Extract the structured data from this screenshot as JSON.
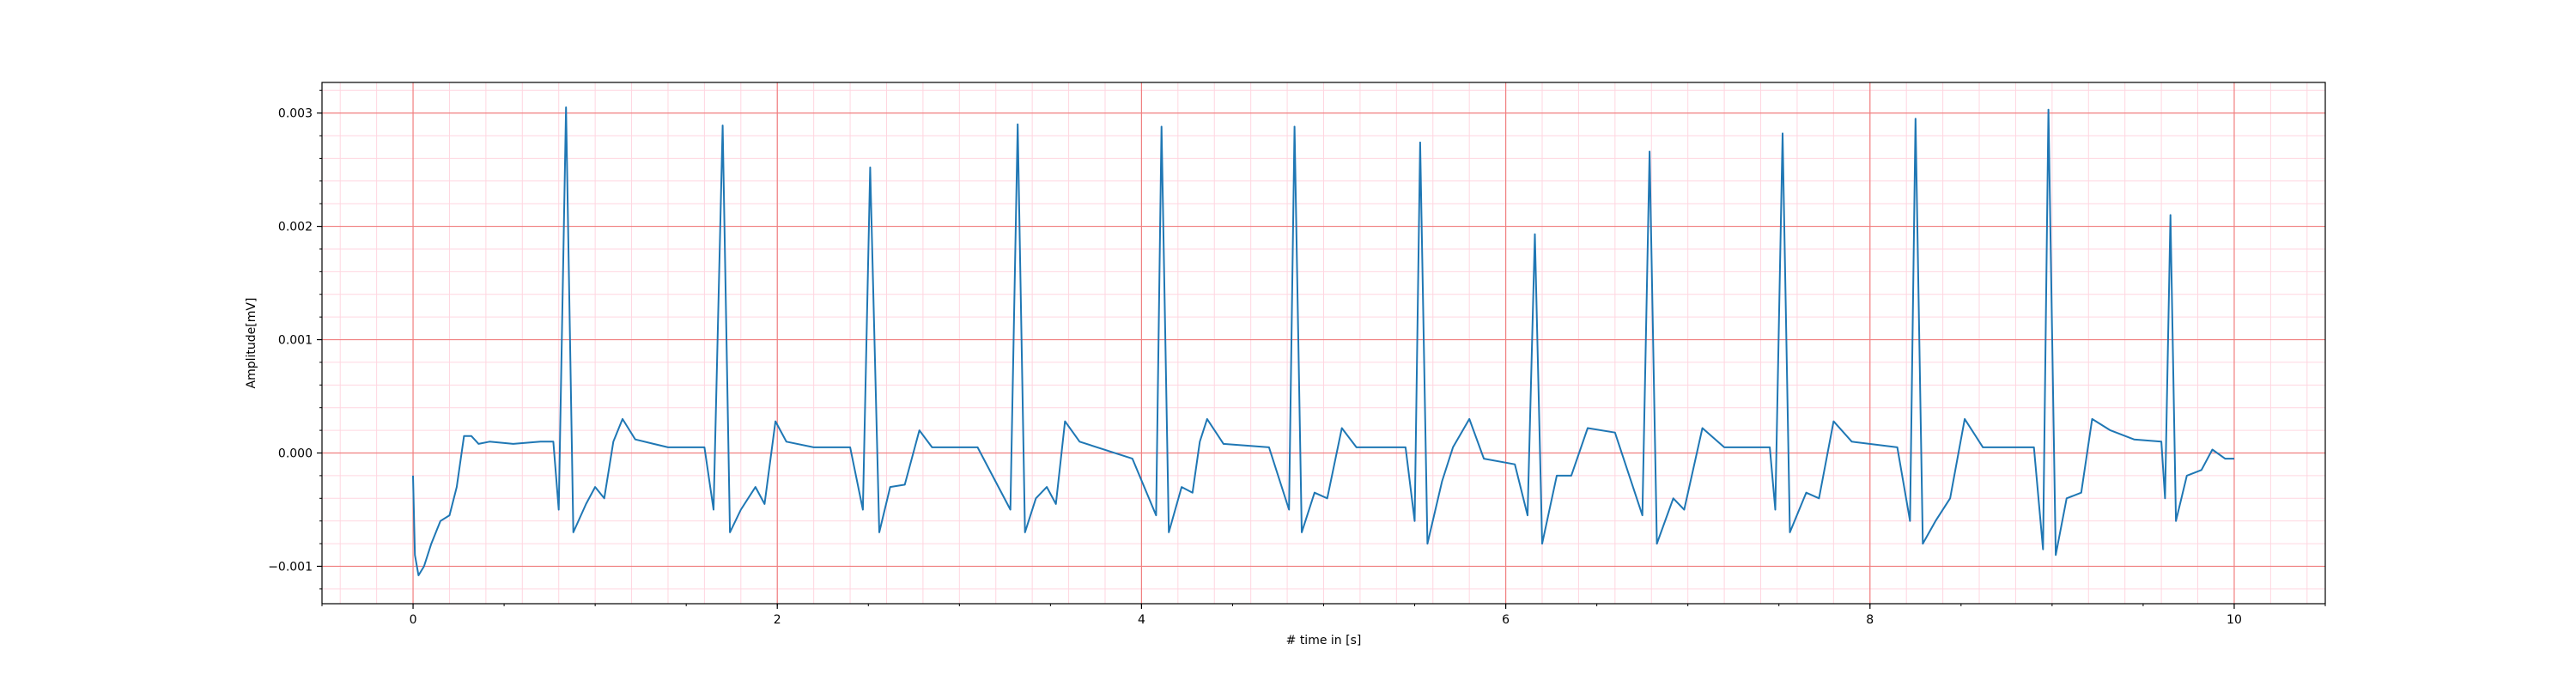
{
  "chart_data": {
    "type": "line",
    "title": "",
    "xlabel": "# time in [s]",
    "ylabel": "Amplitude[mV]",
    "xlim": [
      -0.5,
      10.5
    ],
    "ylim": [
      -0.00133,
      0.00327
    ],
    "x_ticks": [
      0,
      2,
      4,
      6,
      8,
      10
    ],
    "x_tick_labels": [
      "0",
      "2",
      "4",
      "6",
      "8",
      "10"
    ],
    "y_ticks": [
      -0.001,
      0.0,
      0.001,
      0.002,
      0.003
    ],
    "y_tick_labels": [
      "−0.001",
      "0.000",
      "0.001",
      "0.002",
      "0.003"
    ],
    "grid": {
      "major": true,
      "minor": true
    },
    "colors": {
      "line": "#1f77b4",
      "major_grid": "#f08080",
      "minor_grid": "#ffd6e0",
      "axes": "#000000"
    },
    "series": [
      {
        "r_peaks_t": [
          0.84,
          1.7,
          2.51,
          3.32,
          4.11,
          4.84,
          5.53,
          6.16,
          6.79,
          7.52,
          8.25,
          8.98,
          9.65
        ],
        "r_peaks_v": [
          0.00305,
          0.00289,
          0.00252,
          0.0029,
          0.00288,
          0.00288,
          0.00274,
          0.00193,
          0.00266,
          0.00282,
          0.00295,
          0.00303,
          0.0021
        ],
        "points": [
          [
            0.0,
            -0.0002
          ],
          [
            0.01,
            -0.0009
          ],
          [
            0.03,
            -0.00108
          ],
          [
            0.06,
            -0.001
          ],
          [
            0.1,
            -0.0008
          ],
          [
            0.15,
            -0.0006
          ],
          [
            0.2,
            -0.00055
          ],
          [
            0.24,
            -0.0003
          ],
          [
            0.28,
            0.00015
          ],
          [
            0.32,
            0.00015
          ],
          [
            0.36,
            8e-05
          ],
          [
            0.42,
            0.0001
          ],
          [
            0.55,
            8e-05
          ],
          [
            0.7,
            0.0001
          ],
          [
            0.77,
            0.0001
          ],
          [
            0.8,
            -0.0005
          ],
          [
            0.84,
            0.00305
          ],
          [
            0.88,
            -0.0007
          ],
          [
            0.95,
            -0.00045
          ],
          [
            1.0,
            -0.0003
          ],
          [
            1.05,
            -0.0004
          ],
          [
            1.1,
            0.0001
          ],
          [
            1.15,
            0.0003
          ],
          [
            1.22,
            0.00012
          ],
          [
            1.4,
            5e-05
          ],
          [
            1.6,
            5e-05
          ],
          [
            1.65,
            -0.0005
          ],
          [
            1.7,
            0.00289
          ],
          [
            1.74,
            -0.0007
          ],
          [
            1.8,
            -0.0005
          ],
          [
            1.88,
            -0.0003
          ],
          [
            1.93,
            -0.00045
          ],
          [
            1.99,
            0.00028
          ],
          [
            2.05,
            0.0001
          ],
          [
            2.2,
            5e-05
          ],
          [
            2.4,
            5e-05
          ],
          [
            2.47,
            -0.0005
          ],
          [
            2.51,
            0.00252
          ],
          [
            2.56,
            -0.0007
          ],
          [
            2.62,
            -0.0003
          ],
          [
            2.7,
            -0.00028
          ],
          [
            2.78,
            0.0002
          ],
          [
            2.85,
            5e-05
          ],
          [
            3.1,
            5e-05
          ],
          [
            3.28,
            -0.0005
          ],
          [
            3.32,
            0.0029
          ],
          [
            3.36,
            -0.0007
          ],
          [
            3.42,
            -0.0004
          ],
          [
            3.48,
            -0.0003
          ],
          [
            3.53,
            -0.00045
          ],
          [
            3.58,
            0.00028
          ],
          [
            3.66,
            0.0001
          ],
          [
            3.95,
            -5e-05
          ],
          [
            4.08,
            -0.00055
          ],
          [
            4.11,
            0.00288
          ],
          [
            4.15,
            -0.0007
          ],
          [
            4.22,
            -0.0003
          ],
          [
            4.28,
            -0.00035
          ],
          [
            4.32,
            0.0001
          ],
          [
            4.36,
            0.0003
          ],
          [
            4.45,
            8e-05
          ],
          [
            4.7,
            5e-05
          ],
          [
            4.81,
            -0.0005
          ],
          [
            4.84,
            0.00288
          ],
          [
            4.88,
            -0.0007
          ],
          [
            4.95,
            -0.00035
          ],
          [
            5.02,
            -0.0004
          ],
          [
            5.1,
            0.00022
          ],
          [
            5.18,
            5e-05
          ],
          [
            5.45,
            5e-05
          ],
          [
            5.5,
            -0.0006
          ],
          [
            5.53,
            0.00274
          ],
          [
            5.57,
            -0.0008
          ],
          [
            5.65,
            -0.00025
          ],
          [
            5.71,
            5e-05
          ],
          [
            5.8,
            0.0003
          ],
          [
            5.88,
            -5e-05
          ],
          [
            6.05,
            -0.0001
          ],
          [
            6.12,
            -0.00055
          ],
          [
            6.16,
            0.00193
          ],
          [
            6.2,
            -0.0008
          ],
          [
            6.28,
            -0.0002
          ],
          [
            6.36,
            -0.0002
          ],
          [
            6.45,
            0.00022
          ],
          [
            6.6,
            0.00018
          ],
          [
            6.75,
            -0.00055
          ],
          [
            6.79,
            0.00266
          ],
          [
            6.83,
            -0.0008
          ],
          [
            6.92,
            -0.0004
          ],
          [
            6.98,
            -0.0005
          ],
          [
            7.08,
            0.00022
          ],
          [
            7.2,
            5e-05
          ],
          [
            7.45,
            5e-05
          ],
          [
            7.48,
            -0.0005
          ],
          [
            7.52,
            0.00282
          ],
          [
            7.56,
            -0.0007
          ],
          [
            7.65,
            -0.00035
          ],
          [
            7.72,
            -0.0004
          ],
          [
            7.8,
            0.00028
          ],
          [
            7.9,
            0.0001
          ],
          [
            8.15,
            5e-05
          ],
          [
            8.22,
            -0.0006
          ],
          [
            8.25,
            0.00295
          ],
          [
            8.29,
            -0.0008
          ],
          [
            8.36,
            -0.0006
          ],
          [
            8.44,
            -0.0004
          ],
          [
            8.52,
            0.0003
          ],
          [
            8.62,
            5e-05
          ],
          [
            8.9,
            5e-05
          ],
          [
            8.95,
            -0.00085
          ],
          [
            8.98,
            0.00303
          ],
          [
            9.02,
            -0.0009
          ],
          [
            9.08,
            -0.0004
          ],
          [
            9.16,
            -0.00035
          ],
          [
            9.22,
            0.0003
          ],
          [
            9.32,
            0.0002
          ],
          [
            9.45,
            0.00012
          ],
          [
            9.6,
            0.0001
          ],
          [
            9.62,
            -0.0004
          ],
          [
            9.65,
            0.0021
          ],
          [
            9.68,
            -0.0006
          ],
          [
            9.74,
            -0.0002
          ],
          [
            9.82,
            -0.00015
          ],
          [
            9.88,
            3e-05
          ],
          [
            9.95,
            -5e-05
          ],
          [
            10.0,
            -5e-05
          ]
        ]
      }
    ]
  }
}
